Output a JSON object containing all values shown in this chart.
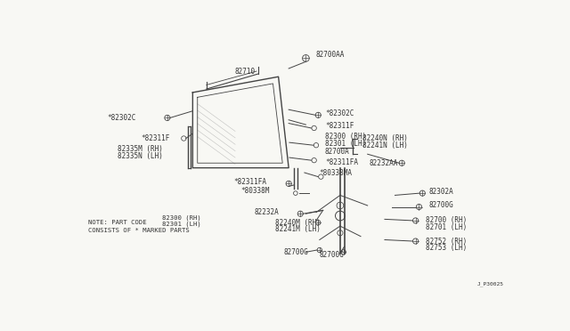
{
  "bg_color": "#f8f8f4",
  "line_color": "#444444",
  "text_color": "#333333",
  "diagram_code": "J_P30025",
  "note_line1": "NOTE: PART CODE",
  "note_pc1": "82300 (RH)",
  "note_pc2": "82301 (LH)",
  "note_line3": "CONSISTS OF * MARKED PARTS",
  "fs_label": 5.5,
  "fs_note": 5.2
}
